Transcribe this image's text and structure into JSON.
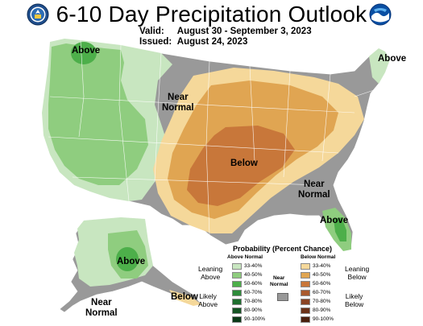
{
  "header": {
    "title": "6-10 Day Precipitation Outlook",
    "valid_label": "Valid:",
    "valid_value": "August 30 - September 3, 2023",
    "issued_label": "Issued:",
    "issued_value": "August 24, 2023"
  },
  "map_labels": {
    "above_northwest": "Above",
    "above_northeast": "Above",
    "above_florida": "Above",
    "above_alaska": "Above",
    "near_normal_north": "Near\nNormal",
    "near_normal_southeast": "Near\nNormal",
    "near_normal_alaska": "Near\nNormal",
    "below_central": "Below",
    "below_aleutians": "Below"
  },
  "legend": {
    "title": "Probability (Percent Chance)",
    "above_header": "Above Normal",
    "below_header": "Below Normal",
    "near_normal_header": "Near Normal",
    "leaning_above": "Leaning\nAbove",
    "likely_above": "Likely\nAbove",
    "leaning_below": "Leaning\nBelow",
    "likely_below": "Likely\nBelow",
    "ranges": [
      "33-40%",
      "40-50%",
      "50-60%",
      "60-70%",
      "70-80%",
      "80-90%",
      "90-100%"
    ],
    "above_colors": [
      "#c8e6c0",
      "#8fcd7f",
      "#4daf4a",
      "#2e8b3a",
      "#1f6e2e",
      "#155423",
      "#0b3a17"
    ],
    "below_colors": [
      "#f5d89a",
      "#e0a552",
      "#c8773a",
      "#a95a2e",
      "#8a4424",
      "#6b3218",
      "#4a200e"
    ],
    "near_normal_color": "#999999"
  },
  "colors": {
    "above_33": "#c8e6c0",
    "above_40": "#8fcd7f",
    "above_50": "#4daf4a",
    "below_33": "#f5d89a",
    "below_40": "#e0a552",
    "below_50": "#c8773a",
    "near_normal": "#999999",
    "state_lines": "#ffffff"
  },
  "icons": {
    "left_logo": "doc-seal-icon",
    "right_logo": "noaa-logo-icon"
  }
}
